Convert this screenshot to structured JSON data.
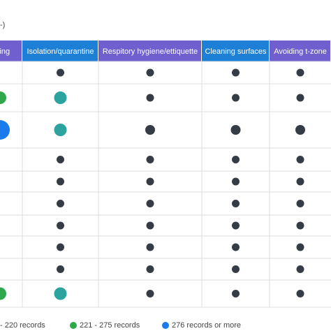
{
  "chart_data": {
    "type": "table",
    "title_fragment": "-)",
    "columns": [
      {
        "label": "ncing",
        "color": "#6f5fcf"
      },
      {
        "label": "Isolation/quarantine",
        "color": "#1e7fd6"
      },
      {
        "label": "Respitory hygiene/ettiquette",
        "color": "#6f5fcf"
      },
      {
        "label": "Cleaning surfaces",
        "color": "#1e7fd6"
      },
      {
        "label": "Avoiding t-zone",
        "color": "#6f5fcf"
      }
    ],
    "rows": [
      [
        null,
        1,
        1,
        1,
        1
      ],
      [
        3,
        3,
        1,
        1,
        1
      ],
      [
        4,
        3,
        2,
        2,
        2
      ],
      [
        null,
        1,
        1,
        1,
        1
      ],
      [
        null,
        1,
        1,
        1,
        1
      ],
      [
        null,
        1,
        1,
        1,
        1
      ],
      [
        null,
        1,
        1,
        1,
        1
      ],
      [
        null,
        1,
        1,
        1,
        1
      ],
      [
        null,
        1,
        1,
        1,
        1
      ],
      [
        3,
        3,
        1,
        1,
        1
      ]
    ],
    "categories": [
      {
        "level": 1,
        "label": "",
        "color": "#353c45"
      },
      {
        "level": 2,
        "label": "- 220 records",
        "color": "#353c45"
      },
      {
        "level": 3,
        "label": "221 - 275 records",
        "color": "#2da39f"
      },
      {
        "level": 4,
        "label": "276 records or more",
        "color": "#1b7bea"
      }
    ],
    "legend": [
      {
        "label": "- 220 records",
        "color": "#353c45"
      },
      {
        "label": "221 - 275 records",
        "color": "#2ea84a"
      },
      {
        "label": "276 records or more",
        "color": "#1b7bea"
      }
    ],
    "row_colors": {
      "row_2_col_1": "#2ea84a",
      "row_10_col_1": "#2ea84a"
    }
  }
}
